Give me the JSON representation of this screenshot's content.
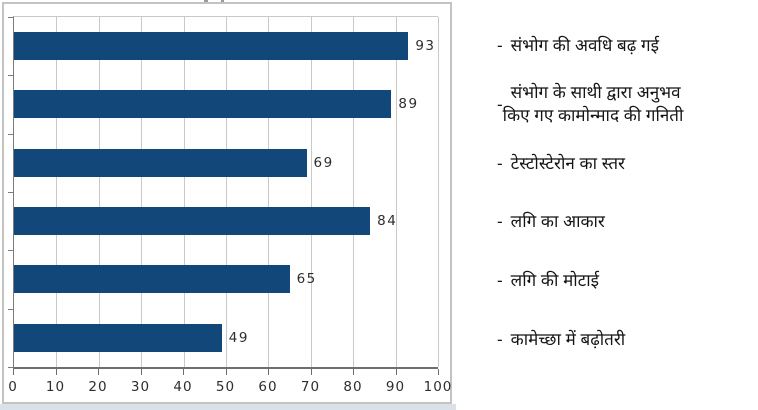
{
  "chart_data": {
    "type": "bar",
    "orientation": "horizontal",
    "title": "",
    "xlabel": "",
    "ylabel": "",
    "xlim": [
      0,
      100
    ],
    "grid": true,
    "bar_color": "#114779",
    "x_ticks": [
      "0",
      "10",
      "20",
      "30",
      "40",
      "50",
      "60",
      "70",
      "80",
      "90",
      "100"
    ],
    "values": [
      93,
      89,
      69,
      84,
      65,
      49
    ],
    "categories": [
      "संभोग की अवधि बढ़ गई",
      "संभोग के साथी द्वारा अनुभव किए गए कामोन्माद की गनिती",
      "टेस्टोस्टेरोन का स्तर",
      "लगि का आकार",
      "लगि की मोटाई",
      "कामेच्छा में बढ़ोतरी"
    ]
  },
  "legend": {
    "bullet": "-",
    "items": [
      {
        "line1": "संभोग की अवधि बढ़ गई",
        "line2": ""
      },
      {
        "line1": "संभोग के साथी द्वारा अनुभव",
        "line2": "किए गए कामोन्माद की गनिती"
      },
      {
        "line1": "टेस्टोस्टेरोन का स्तर",
        "line2": ""
      },
      {
        "line1": "लगि का आकार",
        "line2": ""
      },
      {
        "line1": "लगि की मोटाई",
        "line2": ""
      },
      {
        "line1": "कामेच्छा में बढ़ोतरी",
        "line2": ""
      }
    ]
  }
}
